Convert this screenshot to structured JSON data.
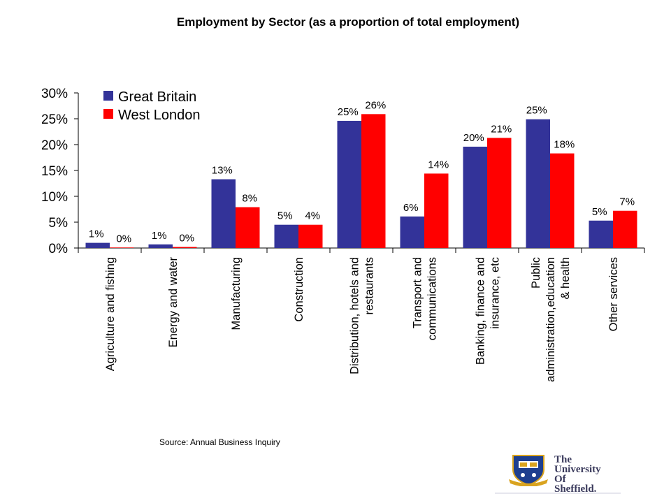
{
  "title": "Employment by Sector (as a proportion of total employment)",
  "source": "Source: Annual Business Inquiry",
  "logo": {
    "lines": [
      "The",
      "University",
      "Of",
      "Sheffield."
    ],
    "colors": {
      "shield": "#1e3f8f",
      "gold": "#d9a31f",
      "text": "#3a3a5c"
    }
  },
  "chart_data": {
    "type": "bar",
    "categories": [
      [
        "Agriculture and fishing"
      ],
      [
        "Energy and water"
      ],
      [
        "Manufacturing"
      ],
      [
        "Construction"
      ],
      [
        "Distribution, hotels and",
        "restaurants"
      ],
      [
        "Transport and",
        "communications"
      ],
      [
        "Banking, finance and",
        "insurance, etc"
      ],
      [
        "Public",
        "administration,education",
        "& health"
      ],
      [
        "Other services"
      ]
    ],
    "series": [
      {
        "name": "Great Britain",
        "color": "#333399",
        "values": [
          1.0,
          0.7,
          13.3,
          4.5,
          24.6,
          6.1,
          19.6,
          24.9,
          5.3
        ],
        "labels": [
          "1%",
          "1%",
          "13%",
          "5%",
          "25%",
          "6%",
          "20%",
          "25%",
          "5%"
        ]
      },
      {
        "name": "West London",
        "color": "#ff0000",
        "values": [
          0.1,
          0.2,
          7.9,
          4.5,
          25.9,
          14.4,
          21.3,
          18.3,
          7.2
        ],
        "labels": [
          "0%",
          "0%",
          "8%",
          "4%",
          "26%",
          "14%",
          "21%",
          "18%",
          "7%"
        ]
      }
    ],
    "y_ticks": [
      "0%",
      "5%",
      "10%",
      "15%",
      "20%",
      "25%",
      "30%"
    ],
    "ylim": [
      0,
      30
    ],
    "legend": "top-left",
    "grid": false
  }
}
